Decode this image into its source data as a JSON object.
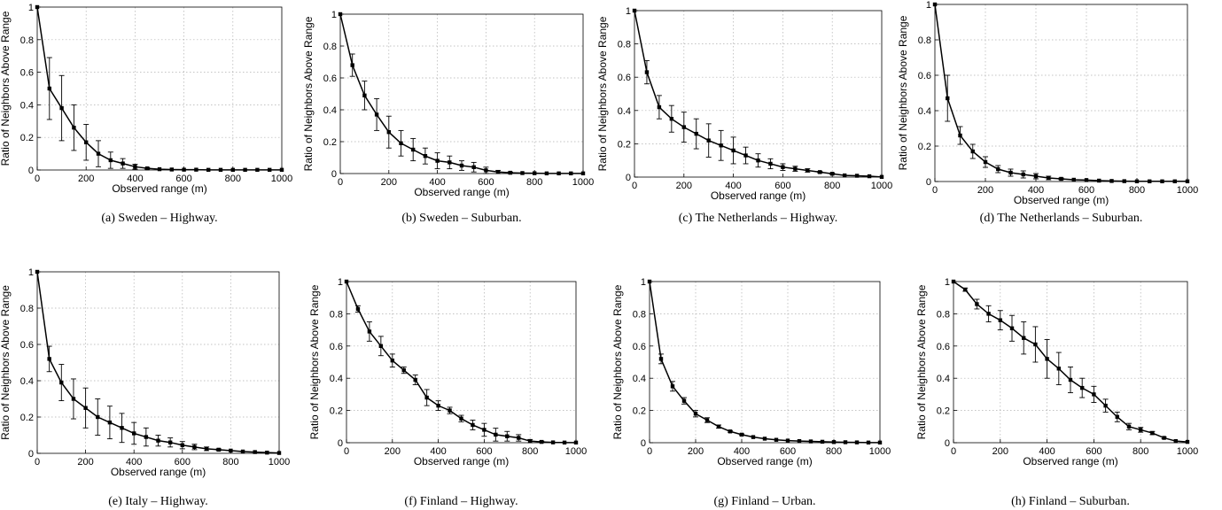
{
  "chart_data": [
    {
      "type": "line",
      "caption": "(a) Sweden – Highway.",
      "xlabel": "Observed range (m)",
      "ylabel": "Ratio of Neighbors Above Range",
      "xlim": [
        0,
        1000
      ],
      "ylim": [
        0,
        1
      ],
      "xticks": [
        0,
        200,
        400,
        600,
        800,
        1000
      ],
      "yticks": [
        0,
        0.2,
        0.4,
        0.6,
        0.8,
        1
      ],
      "ytick_labels": [
        "0",
        "0.2",
        "0.4",
        "0.6",
        "0.8",
        "1"
      ],
      "grid": true,
      "x": [
        0,
        50,
        100,
        150,
        200,
        250,
        300,
        350,
        400,
        450,
        500,
        550,
        600,
        650,
        700,
        750,
        800,
        850,
        900,
        950,
        1000
      ],
      "y": [
        1,
        0.5,
        0.38,
        0.26,
        0.17,
        0.1,
        0.06,
        0.04,
        0.02,
        0.01,
        0.005,
        0.003,
        0.002,
        0.002,
        0.001,
        0.001,
        0.001,
        0.001,
        0.001,
        0.001,
        0.001
      ],
      "err": [
        0,
        0.19,
        0.2,
        0.14,
        0.11,
        0.08,
        0.05,
        0.03,
        0.015,
        0.005,
        0,
        0,
        0,
        0,
        0,
        0,
        0,
        0,
        0,
        0,
        0
      ]
    },
    {
      "type": "line",
      "caption": "(b) Sweden – Suburban.",
      "xlabel": "Observed range (m)",
      "ylabel": "Ratio of Neighbors Above Range",
      "xlim": [
        0,
        1000
      ],
      "ylim": [
        0,
        1
      ],
      "xticks": [
        0,
        200,
        400,
        600,
        800,
        1000
      ],
      "yticks": [
        0,
        0.2,
        0.4,
        0.6,
        0.8,
        1
      ],
      "ytick_labels": [
        "0",
        "0.2",
        "0.4",
        "0.6",
        "0.8",
        "1"
      ],
      "grid": true,
      "x": [
        0,
        50,
        100,
        150,
        200,
        250,
        300,
        350,
        400,
        450,
        500,
        550,
        600,
        650,
        700,
        750,
        800,
        850,
        900,
        950,
        1000
      ],
      "y": [
        1,
        0.68,
        0.49,
        0.37,
        0.26,
        0.19,
        0.15,
        0.11,
        0.08,
        0.07,
        0.05,
        0.04,
        0.02,
        0.01,
        0.005,
        0.003,
        0.002,
        0.001,
        0.001,
        0.001,
        0.001
      ],
      "err": [
        0,
        0.07,
        0.09,
        0.1,
        0.1,
        0.08,
        0.07,
        0.05,
        0.05,
        0.04,
        0.03,
        0.03,
        0.02,
        0.01,
        0.005,
        0,
        0,
        0,
        0,
        0,
        0
      ]
    },
    {
      "type": "line",
      "caption": "(c) The Netherlands – Highway.",
      "xlabel": "Observed range (m)",
      "ylabel": "Ratio of Neighbors Above Range",
      "xlim": [
        0,
        1000
      ],
      "ylim": [
        0,
        1
      ],
      "xticks": [
        0,
        200,
        400,
        600,
        800,
        1000
      ],
      "yticks": [
        0,
        0.2,
        0.4,
        0.6,
        0.8,
        1
      ],
      "ytick_labels": [
        "0",
        "0.2",
        "0.4",
        "0.6",
        "0.8",
        "1"
      ],
      "grid": true,
      "x": [
        0,
        50,
        100,
        150,
        200,
        250,
        300,
        350,
        400,
        450,
        500,
        550,
        600,
        650,
        700,
        750,
        800,
        850,
        900,
        950,
        1000
      ],
      "y": [
        1,
        0.63,
        0.42,
        0.35,
        0.3,
        0.26,
        0.22,
        0.19,
        0.16,
        0.13,
        0.1,
        0.08,
        0.06,
        0.05,
        0.04,
        0.03,
        0.02,
        0.01,
        0.008,
        0.005,
        0.001
      ],
      "err": [
        0,
        0.07,
        0.07,
        0.08,
        0.09,
        0.09,
        0.1,
        0.09,
        0.08,
        0.05,
        0.04,
        0.03,
        0.02,
        0.015,
        0.01,
        0.005,
        0.005,
        0,
        0,
        0,
        0
      ]
    },
    {
      "type": "line",
      "caption": "(d) The Netherlands – Suburban.",
      "xlabel": "Observed range (m)",
      "ylabel": "Ratio of Neighbors Above Range",
      "xlim": [
        0,
        1000
      ],
      "ylim": [
        0,
        1
      ],
      "xticks": [
        0,
        200,
        400,
        600,
        800,
        1000
      ],
      "yticks": [
        0,
        0.2,
        0.4,
        0.6,
        0.8,
        1
      ],
      "ytick_labels": [
        "0",
        "0.2",
        "0.4",
        "0.6",
        "0.8",
        "1"
      ],
      "grid": true,
      "x": [
        0,
        50,
        100,
        150,
        200,
        250,
        300,
        350,
        400,
        450,
        500,
        550,
        600,
        650,
        700,
        750,
        800,
        850,
        900,
        950,
        1000
      ],
      "y": [
        1,
        0.47,
        0.26,
        0.17,
        0.11,
        0.07,
        0.05,
        0.04,
        0.03,
        0.02,
        0.015,
        0.01,
        0.008,
        0.005,
        0.003,
        0.002,
        0.001,
        0.001,
        0.001,
        0.001,
        0.001
      ],
      "err": [
        0,
        0.13,
        0.05,
        0.04,
        0.03,
        0.02,
        0.02,
        0.02,
        0.015,
        0.01,
        0.005,
        0,
        0,
        0,
        0,
        0,
        0,
        0,
        0,
        0,
        0
      ]
    },
    {
      "type": "line",
      "caption": "(e) Italy – Highway.",
      "xlabel": "Observed range (m)",
      "ylabel": "Ratio of Neighbors Above Range",
      "xlim": [
        0,
        1000
      ],
      "ylim": [
        0,
        1
      ],
      "xticks": [
        0,
        200,
        400,
        600,
        800,
        1000
      ],
      "yticks": [
        0,
        0.2,
        0.4,
        0.6,
        0.8,
        1
      ],
      "ytick_labels": [
        "0",
        "0.2",
        "0.4",
        "0.6",
        "0.8",
        "1"
      ],
      "grid": true,
      "x": [
        0,
        50,
        100,
        150,
        200,
        250,
        300,
        350,
        400,
        450,
        500,
        550,
        600,
        650,
        700,
        750,
        800,
        850,
        900,
        950,
        1000
      ],
      "y": [
        1,
        0.52,
        0.39,
        0.3,
        0.25,
        0.2,
        0.17,
        0.14,
        0.11,
        0.09,
        0.07,
        0.06,
        0.045,
        0.035,
        0.025,
        0.02,
        0.015,
        0.01,
        0.007,
        0.004,
        0.002
      ],
      "err": [
        0,
        0.07,
        0.1,
        0.11,
        0.11,
        0.1,
        0.09,
        0.08,
        0.06,
        0.05,
        0.03,
        0.025,
        0.02,
        0.015,
        0.01,
        0.005,
        0,
        0,
        0,
        0,
        0
      ]
    },
    {
      "type": "line",
      "caption": "(f) Finland – Highway.",
      "xlabel": "Observed range (m)",
      "ylabel": "Ratio of Neighbors Above Range",
      "xlim": [
        0,
        1000
      ],
      "ylim": [
        0,
        1
      ],
      "xticks": [
        0,
        200,
        400,
        600,
        800,
        1000
      ],
      "yticks": [
        0,
        0.2,
        0.4,
        0.6,
        0.8,
        1
      ],
      "ytick_labels": [
        "0",
        "0.2",
        "0.4",
        "0.6",
        "0.8",
        "1"
      ],
      "grid": true,
      "x": [
        0,
        50,
        100,
        150,
        200,
        250,
        300,
        350,
        400,
        450,
        500,
        550,
        600,
        650,
        700,
        750,
        800,
        850,
        900,
        950,
        1000
      ],
      "y": [
        1,
        0.83,
        0.69,
        0.6,
        0.51,
        0.45,
        0.39,
        0.28,
        0.23,
        0.2,
        0.15,
        0.11,
        0.08,
        0.05,
        0.04,
        0.03,
        0.01,
        0.005,
        0.002,
        0.001,
        0.001
      ],
      "err": [
        0,
        0.02,
        0.06,
        0.06,
        0.04,
        0.02,
        0.03,
        0.05,
        0.03,
        0.02,
        0.02,
        0.03,
        0.04,
        0.04,
        0.03,
        0.02,
        0.01,
        0.005,
        0,
        0,
        0
      ]
    },
    {
      "type": "line",
      "caption": "(g) Finland – Urban.",
      "xlabel": "Observed range (m)",
      "ylabel": "Ratio of Neighbors Above Range",
      "xlim": [
        0,
        1000
      ],
      "ylim": [
        0,
        1
      ],
      "xticks": [
        0,
        200,
        400,
        600,
        800,
        1000
      ],
      "yticks": [
        0,
        0.2,
        0.4,
        0.6,
        0.8,
        1
      ],
      "ytick_labels": [
        "0",
        "0.2",
        "0.4",
        "0.6",
        "0.8",
        "1"
      ],
      "grid": true,
      "x": [
        0,
        50,
        100,
        150,
        200,
        250,
        300,
        350,
        400,
        450,
        500,
        550,
        600,
        650,
        700,
        750,
        800,
        850,
        900,
        950,
        1000
      ],
      "y": [
        1,
        0.52,
        0.35,
        0.26,
        0.18,
        0.14,
        0.1,
        0.07,
        0.05,
        0.035,
        0.025,
        0.018,
        0.013,
        0.01,
        0.008,
        0.006,
        0.004,
        0.003,
        0.002,
        0.001,
        0.001
      ],
      "err": [
        0,
        0.03,
        0.03,
        0.02,
        0.02,
        0.015,
        0.01,
        0.005,
        0.005,
        0,
        0,
        0,
        0,
        0,
        0,
        0,
        0,
        0,
        0,
        0,
        0
      ]
    },
    {
      "type": "line",
      "caption": "(h) Finland – Suburban.",
      "xlabel": "Observed range (m)",
      "ylabel": "Ratio of Neighbors Above Range",
      "xlim": [
        0,
        1000
      ],
      "ylim": [
        0,
        1
      ],
      "xticks": [
        0,
        200,
        400,
        600,
        800,
        1000
      ],
      "yticks": [
        0,
        0.2,
        0.4,
        0.6,
        0.8,
        1
      ],
      "ytick_labels": [
        "0",
        "0.2",
        "0.4",
        "0.6",
        "0.8",
        "1"
      ],
      "grid": true,
      "x": [
        0,
        50,
        100,
        150,
        200,
        250,
        300,
        350,
        400,
        450,
        500,
        550,
        600,
        650,
        700,
        750,
        800,
        850,
        900,
        950,
        1000
      ],
      "y": [
        1,
        0.95,
        0.86,
        0.8,
        0.76,
        0.71,
        0.65,
        0.61,
        0.52,
        0.46,
        0.39,
        0.34,
        0.3,
        0.23,
        0.16,
        0.1,
        0.08,
        0.06,
        0.03,
        0.01,
        0.005
      ],
      "err": [
        0,
        0.01,
        0.03,
        0.05,
        0.06,
        0.08,
        0.1,
        0.11,
        0.12,
        0.1,
        0.08,
        0.06,
        0.05,
        0.04,
        0.03,
        0.02,
        0.015,
        0.01,
        0.005,
        0,
        0
      ]
    }
  ]
}
